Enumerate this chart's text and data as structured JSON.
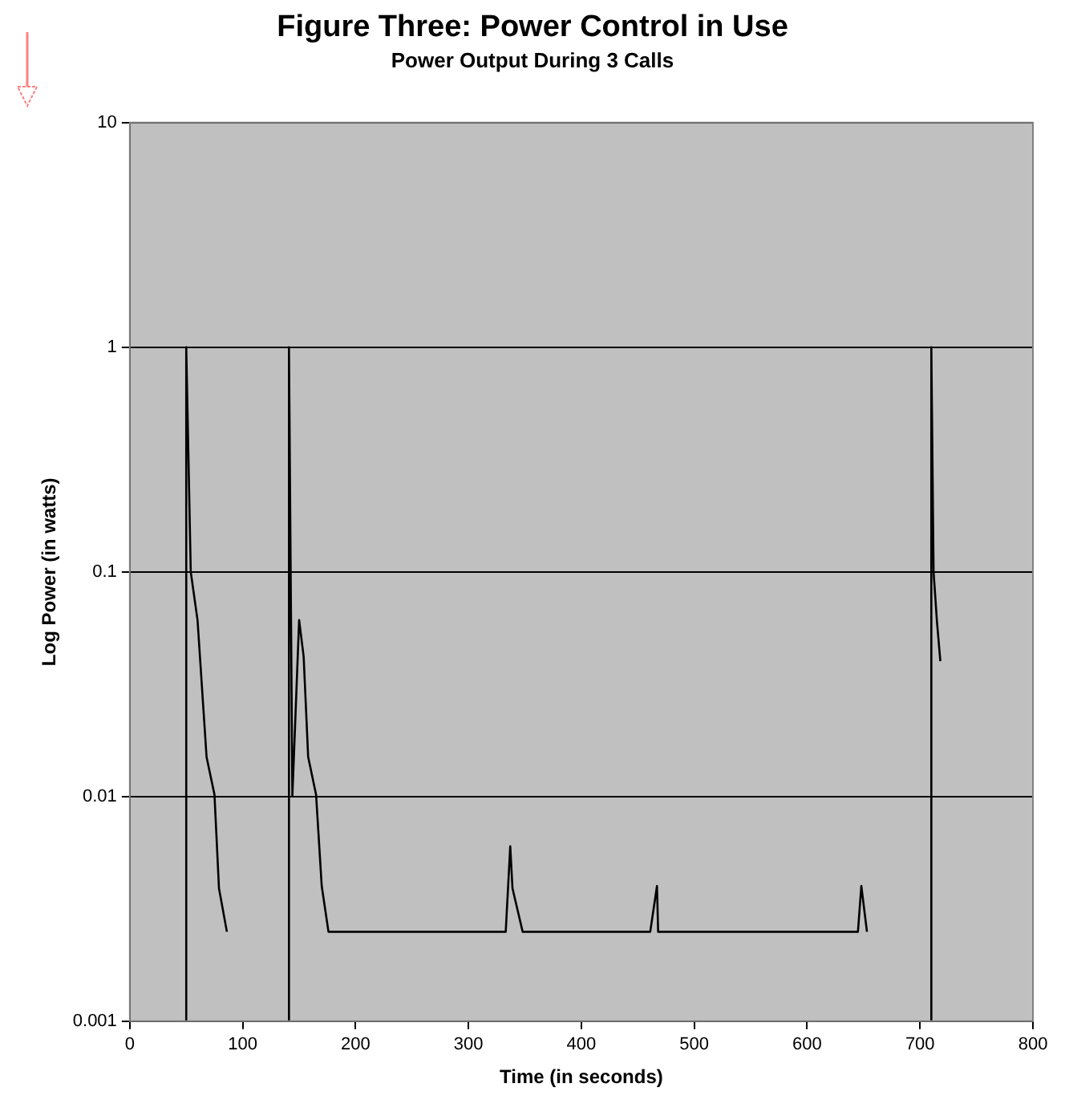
{
  "chart_data": {
    "type": "line",
    "title": "Figure Three: Power Control in Use",
    "subtitle": "Power Output During 3 Calls",
    "xlabel": "Time (in seconds)",
    "ylabel": "Log Power (in watts)",
    "series": [
      {
        "color": "#000000",
        "x": [
          50,
          50,
          54,
          60,
          68,
          75,
          79,
          86
        ],
        "values": [
          0.001,
          1,
          0.1,
          0.061,
          0.015,
          0.0102,
          0.0039,
          0.0025
        ]
      },
      {
        "color": "#000000",
        "x": [
          141,
          141,
          144,
          150,
          154,
          158,
          165,
          170,
          176,
          333,
          337,
          339,
          348,
          461,
          467,
          468,
          645,
          648,
          653
        ],
        "values": [
          0.001,
          1,
          0.01,
          0.061,
          0.042,
          0.015,
          0.0102,
          0.004,
          0.0025,
          0.0025,
          0.006,
          0.0039,
          0.0025,
          0.0025,
          0.004,
          0.0025,
          0.0025,
          0.004,
          0.0025
        ]
      },
      {
        "color": "#000000",
        "x": [
          710,
          710,
          712,
          715,
          718
        ],
        "values": [
          0.001,
          1,
          0.1,
          0.06,
          0.04
        ]
      }
    ],
    "xlim": [
      0,
      800
    ],
    "xticks": [
      0,
      100,
      200,
      300,
      400,
      500,
      600,
      700,
      800
    ],
    "ylim": [
      0.001,
      10
    ],
    "yticks": [
      0.001,
      0.01,
      0.1,
      1,
      10
    ],
    "log": true,
    "grid": "y",
    "legend": false,
    "marker": "none",
    "line_style": "solid"
  }
}
